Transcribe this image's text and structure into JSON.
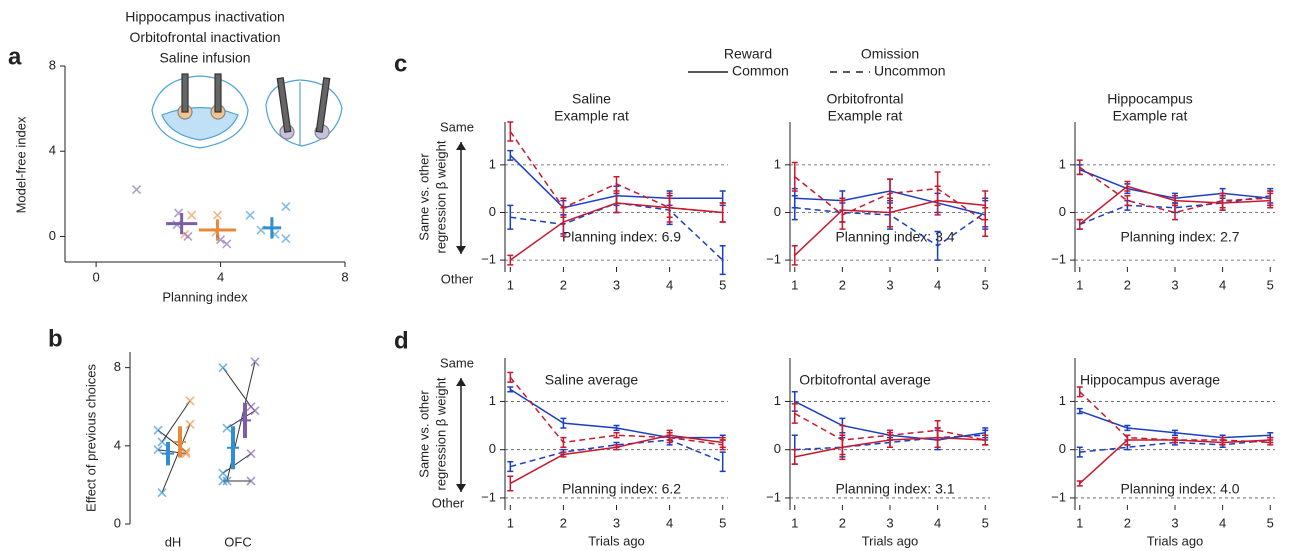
{
  "panel_labels": [
    "a",
    "b",
    "c",
    "d"
  ],
  "legend": {
    "colors": [
      {
        "label": "Reward",
        "color": "#1a3fc4"
      },
      {
        "label": "Omission",
        "color": "#c8192e"
      }
    ],
    "styles": [
      {
        "label": "Common",
        "dash": false
      },
      {
        "label": "Uncommon",
        "dash": true
      }
    ]
  },
  "chart_data": [
    {
      "type": "scatter",
      "xlabel": "Planning index",
      "ylabel": "Model-free index",
      "xlim": [
        -1,
        8
      ],
      "ylim": [
        -1.2,
        8
      ],
      "xticks": [
        0,
        4,
        8
      ],
      "yticks": [
        0,
        4,
        8
      ],
      "series": [
        {
          "name": "Hippocampus inactivation",
          "color": "#e8893a",
          "x": [
            3.07,
            2.85,
            3.9,
            3.85
          ],
          "y": [
            1.0,
            0.1,
            1.0,
            0.2
          ],
          "mean_x": 3.9,
          "mean_y": 0.3,
          "xerr": 0.6,
          "yerr": 0.5
        },
        {
          "name": "Orbitofrontal inactivation",
          "color": "#7b5ea7",
          "x": [
            1.3,
            2.65,
            2.6,
            2.95,
            4.0,
            4.2
          ],
          "y": [
            2.2,
            1.1,
            0.55,
            0.0,
            -0.15,
            -0.35
          ],
          "mean_x": 2.75,
          "mean_y": 0.6,
          "xerr": 0.5,
          "yerr": 0.5
        },
        {
          "name": "Saline infusion",
          "color": "#2f8fd0",
          "x": [
            4.95,
            6.1,
            5.3,
            5.75,
            6.1
          ],
          "y": [
            1.0,
            1.4,
            0.3,
            0.1,
            -0.1
          ],
          "mean_x": 5.65,
          "mean_y": 0.4,
          "xerr": 0.3,
          "yerr": 0.5
        }
      ]
    },
    {
      "type": "strip",
      "ylabel": "Effect of previous choices",
      "categories": [
        "dH",
        "OFC"
      ],
      "ylim": [
        0,
        8.8
      ],
      "yticks": [
        0,
        4,
        8
      ],
      "series": [
        {
          "colors": [
            "#2f8fd0",
            "#2f8fd0"
          ],
          "values": [
            [
              4.8,
              4.2,
              3.8,
              1.6
            ],
            [
              8.0,
              4.9,
              2.6,
              2.2,
              2.2
            ]
          ],
          "mean": [
            3.6,
            3.9
          ],
          "err": [
            0.6,
            1.1
          ]
        },
        {
          "colors": [
            "#e8893a",
            "#7b5ea7"
          ],
          "values": [
            [
              3.7,
              6.3,
              3.6,
              5.1
            ],
            [
              6.0,
              5.8,
              3.6,
              8.3,
              2.2
            ]
          ],
          "mean": [
            4.2,
            5.3
          ],
          "err": [
            0.8,
            0.9
          ]
        }
      ]
    },
    {
      "type": "line",
      "title": [
        "Saline",
        "Example rat"
      ],
      "ylabel": [
        "Same vs. other",
        "regression β weight"
      ],
      "arrow_labels": [
        "Same",
        "Other"
      ],
      "annotation": "Planning index: 6.9",
      "x": [
        1,
        2,
        3,
        4,
        5
      ],
      "xticks": [
        1,
        2,
        3,
        4,
        5
      ],
      "xlim": [
        0.9,
        5.1
      ],
      "ylim": [
        -1.25,
        1.9
      ],
      "yticks": [
        {
          "value": -1,
          "label": "−1"
        },
        0,
        1
      ],
      "grid": true,
      "series": [
        {
          "color": "#1a3fc4",
          "dash": false,
          "values": [
            1.2,
            0.1,
            0.35,
            0.3,
            0.3
          ],
          "err": [
            0.1,
            0.15,
            0.2,
            0.15,
            0.15
          ]
        },
        {
          "color": "#1a3fc4",
          "dash": true,
          "values": [
            -0.1,
            -0.25,
            0.2,
            0.05,
            -1.0
          ],
          "err": [
            0.25,
            0.2,
            0.2,
            0.3,
            0.3
          ]
        },
        {
          "color": "#c8192e",
          "dash": false,
          "values": [
            -1.0,
            -0.2,
            0.2,
            0.1,
            0.0
          ],
          "err": [
            0.1,
            0.3,
            0.2,
            0.2,
            0.2
          ]
        },
        {
          "color": "#c8192e",
          "dash": true,
          "values": [
            1.7,
            0.1,
            0.6,
            0.1,
            0.0
          ],
          "err": [
            0.2,
            0.2,
            0.15,
            0.3,
            0.2
          ]
        }
      ]
    },
    {
      "type": "line",
      "title": [
        "Orbitofrontal",
        "Example rat"
      ],
      "annotation": "Planning index: 3.4",
      "x": [
        1,
        2,
        3,
        4,
        5
      ],
      "xticks": [
        1,
        2,
        3,
        4,
        5
      ],
      "xlim": [
        0.9,
        5.1
      ],
      "ylim": [
        -1.25,
        1.9
      ],
      "yticks": [
        {
          "value": -1,
          "label": "−1"
        },
        0,
        1
      ],
      "grid": true,
      "series": [
        {
          "color": "#1a3fc4",
          "dash": false,
          "values": [
            0.3,
            0.25,
            0.45,
            0.2,
            -0.05
          ],
          "err": [
            0.2,
            0.2,
            0.25,
            0.2,
            0.3
          ]
        },
        {
          "color": "#1a3fc4",
          "dash": true,
          "values": [
            0.1,
            0.0,
            -0.05,
            -0.7,
            0.0
          ],
          "err": [
            0.25,
            0.2,
            0.3,
            0.3,
            0.3
          ]
        },
        {
          "color": "#c8192e",
          "dash": false,
          "values": [
            -0.9,
            0.05,
            0.0,
            0.25,
            0.15
          ],
          "err": [
            0.2,
            0.25,
            0.3,
            0.3,
            0.3
          ]
        },
        {
          "color": "#c8192e",
          "dash": true,
          "values": [
            0.75,
            -0.05,
            0.4,
            0.5,
            -0.2
          ],
          "err": [
            0.3,
            0.3,
            0.3,
            0.35,
            0.3
          ]
        }
      ]
    },
    {
      "type": "line",
      "title": [
        "Hippocampus",
        "Example rat"
      ],
      "annotation": "Planning index: 2.7",
      "x": [
        1,
        2,
        3,
        4,
        5
      ],
      "xticks": [
        1,
        2,
        3,
        4,
        5
      ],
      "xlim": [
        0.9,
        5.1
      ],
      "ylim": [
        -1.25,
        1.9
      ],
      "yticks": [
        {
          "value": -1,
          "label": "−1"
        },
        0,
        1
      ],
      "grid": true,
      "series": [
        {
          "color": "#1a3fc4",
          "dash": false,
          "values": [
            0.9,
            0.5,
            0.3,
            0.4,
            0.3
          ],
          "err": [
            0.1,
            0.1,
            0.1,
            0.1,
            0.15
          ]
        },
        {
          "color": "#1a3fc4",
          "dash": true,
          "values": [
            -0.25,
            0.15,
            0.1,
            0.2,
            0.35
          ],
          "err": [
            0.1,
            0.1,
            0.1,
            0.15,
            0.15
          ]
        },
        {
          "color": "#c8192e",
          "dash": false,
          "values": [
            -0.25,
            0.55,
            0.25,
            0.2,
            0.25
          ],
          "err": [
            0.1,
            0.1,
            0.1,
            0.15,
            0.15
          ]
        },
        {
          "color": "#c8192e",
          "dash": true,
          "values": [
            0.95,
            0.25,
            0.0,
            0.25,
            0.3
          ],
          "err": [
            0.15,
            0.1,
            0.15,
            0.15,
            0.15
          ]
        }
      ]
    },
    {
      "type": "line",
      "title": "Saline average",
      "ylabel": [
        "Same vs. other",
        "regression β weight"
      ],
      "arrow_labels": [
        "Same",
        "Other"
      ],
      "annotation": "Planning index: 6.2",
      "xlabel": "Trials ago",
      "x": [
        1,
        2,
        3,
        4,
        5
      ],
      "xticks": [
        1,
        2,
        3,
        4,
        5
      ],
      "xlim": [
        0.9,
        5.1
      ],
      "ylim": [
        -1.25,
        1.9
      ],
      "yticks": [
        {
          "value": -1,
          "label": "−1"
        },
        0,
        1
      ],
      "grid": true,
      "series": [
        {
          "color": "#1a3fc4",
          "dash": false,
          "values": [
            1.25,
            0.55,
            0.45,
            0.25,
            0.25
          ],
          "err": [
            0.05,
            0.1,
            0.05,
            0.05,
            0.05
          ]
        },
        {
          "color": "#1a3fc4",
          "dash": true,
          "values": [
            -0.35,
            -0.05,
            0.1,
            0.2,
            -0.25
          ],
          "err": [
            0.1,
            0.05,
            0.05,
            0.1,
            0.2
          ]
        },
        {
          "color": "#c8192e",
          "dash": false,
          "values": [
            -0.7,
            -0.1,
            0.05,
            0.3,
            0.15
          ],
          "err": [
            0.15,
            0.05,
            0.05,
            0.1,
            0.1
          ]
        },
        {
          "color": "#c8192e",
          "dash": true,
          "values": [
            1.5,
            0.15,
            0.3,
            0.25,
            0.1
          ],
          "err": [
            0.1,
            0.1,
            0.05,
            0.1,
            0.1
          ]
        }
      ]
    },
    {
      "type": "line",
      "title": "Orbitofrontal average",
      "annotation": "Planning index: 3.1",
      "xlabel": "Trials ago",
      "x": [
        1,
        2,
        3,
        4,
        5
      ],
      "xticks": [
        1,
        2,
        3,
        4,
        5
      ],
      "xlim": [
        0.9,
        5.1
      ],
      "ylim": [
        -1.25,
        1.9
      ],
      "yticks": [
        {
          "value": -1,
          "label": "−1"
        },
        0,
        1
      ],
      "grid": true,
      "series": [
        {
          "color": "#1a3fc4",
          "dash": false,
          "values": [
            1.0,
            0.5,
            0.3,
            0.2,
            0.35
          ],
          "err": [
            0.2,
            0.15,
            0.1,
            0.2,
            0.1
          ]
        },
        {
          "color": "#1a3fc4",
          "dash": true,
          "values": [
            0.0,
            0.05,
            0.15,
            0.25,
            0.3
          ],
          "err": [
            0.3,
            0.2,
            0.1,
            0.2,
            0.1
          ]
        },
        {
          "color": "#c8192e",
          "dash": false,
          "values": [
            -0.15,
            0.05,
            0.2,
            0.25,
            0.2
          ],
          "err": [
            0.15,
            0.25,
            0.15,
            0.2,
            0.1
          ]
        },
        {
          "color": "#c8192e",
          "dash": true,
          "values": [
            0.75,
            0.2,
            0.3,
            0.4,
            0.2
          ],
          "err": [
            0.2,
            0.3,
            0.1,
            0.2,
            0.1
          ]
        }
      ]
    },
    {
      "type": "line",
      "title": "Hippocampus average",
      "annotation": "Planning index: 4.0",
      "xlabel": "Trials ago",
      "x": [
        1,
        2,
        3,
        4,
        5
      ],
      "xticks": [
        1,
        2,
        3,
        4,
        5
      ],
      "xlim": [
        0.9,
        5.1
      ],
      "ylim": [
        -1.25,
        1.9
      ],
      "yticks": [
        {
          "value": -1,
          "label": "−1"
        },
        0,
        1
      ],
      "grid": true,
      "series": [
        {
          "color": "#1a3fc4",
          "dash": false,
          "values": [
            0.8,
            0.45,
            0.35,
            0.25,
            0.3
          ],
          "err": [
            0.05,
            0.05,
            0.05,
            0.05,
            0.05
          ]
        },
        {
          "color": "#1a3fc4",
          "dash": true,
          "values": [
            -0.05,
            0.05,
            0.15,
            0.1,
            0.2
          ],
          "err": [
            0.1,
            0.05,
            0.05,
            0.05,
            0.05
          ]
        },
        {
          "color": "#c8192e",
          "dash": false,
          "values": [
            -0.7,
            0.2,
            0.2,
            0.15,
            0.2
          ],
          "err": [
            0.05,
            0.1,
            0.05,
            0.05,
            0.05
          ]
        },
        {
          "color": "#c8192e",
          "dash": true,
          "values": [
            1.2,
            0.25,
            0.2,
            0.2,
            0.15
          ],
          "err": [
            0.1,
            0.05,
            0.05,
            0.05,
            0.05
          ]
        }
      ]
    }
  ]
}
